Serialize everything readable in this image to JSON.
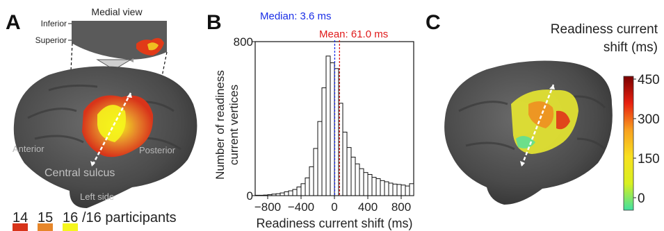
{
  "panel_a": {
    "letter": "A",
    "medial_view_label": "Medial view",
    "inferior_label": "Inferior",
    "superior_label": "Superior",
    "anterior_label": "Anterior",
    "posterior_label": "Posterior",
    "central_sulcus_label": "Central sulcus",
    "left_side_label": "Left side",
    "legend": {
      "items": [
        {
          "value": "14",
          "color": "#d8341a"
        },
        {
          "value": "15",
          "color": "#e6862a"
        },
        {
          "value": "16",
          "color": "#f5f51c"
        }
      ],
      "suffix": "/16 participants"
    }
  },
  "panel_b": {
    "letter": "B",
    "median_label": "Median: 3.6 ms",
    "mean_label": "Mean: 61.0 ms",
    "median_color": "#1a2ee6",
    "mean_color": "#e01a1a"
  },
  "panel_c": {
    "letter": "C",
    "title_line1": "Readiness current",
    "title_line2": "shift (ms)",
    "colorbar_ticks": [
      "450",
      "300",
      "150",
      "0"
    ]
  },
  "chart_data": {
    "type": "bar",
    "xlabel": "Readiness current shift (ms)",
    "ylabel_line1": "Number of readiness",
    "ylabel_line2": "current vertices",
    "x_ticks": [
      "−800",
      "−400",
      "0",
      "400",
      "800"
    ],
    "y_ticks": [
      "800",
      "0"
    ],
    "xlim": [
      -950,
      950
    ],
    "ylim": [
      0,
      800
    ],
    "bin_width": 50,
    "bin_starts": [
      -950,
      -900,
      -850,
      -800,
      -750,
      -700,
      -650,
      -600,
      -550,
      -500,
      -450,
      -400,
      -350,
      -300,
      -250,
      -200,
      -150,
      -100,
      -50,
      0,
      50,
      100,
      150,
      200,
      250,
      300,
      350,
      400,
      450,
      500,
      550,
      600,
      650,
      700,
      750,
      800,
      850,
      900
    ],
    "values": [
      2,
      2,
      3,
      5,
      8,
      10,
      14,
      20,
      25,
      32,
      45,
      62,
      92,
      150,
      245,
      385,
      560,
      725,
      690,
      660,
      480,
      330,
      250,
      200,
      165,
      140,
      120,
      110,
      95,
      88,
      78,
      72,
      65,
      60,
      58,
      55,
      50,
      62
    ],
    "median": 3.6,
    "mean": 61.0
  }
}
